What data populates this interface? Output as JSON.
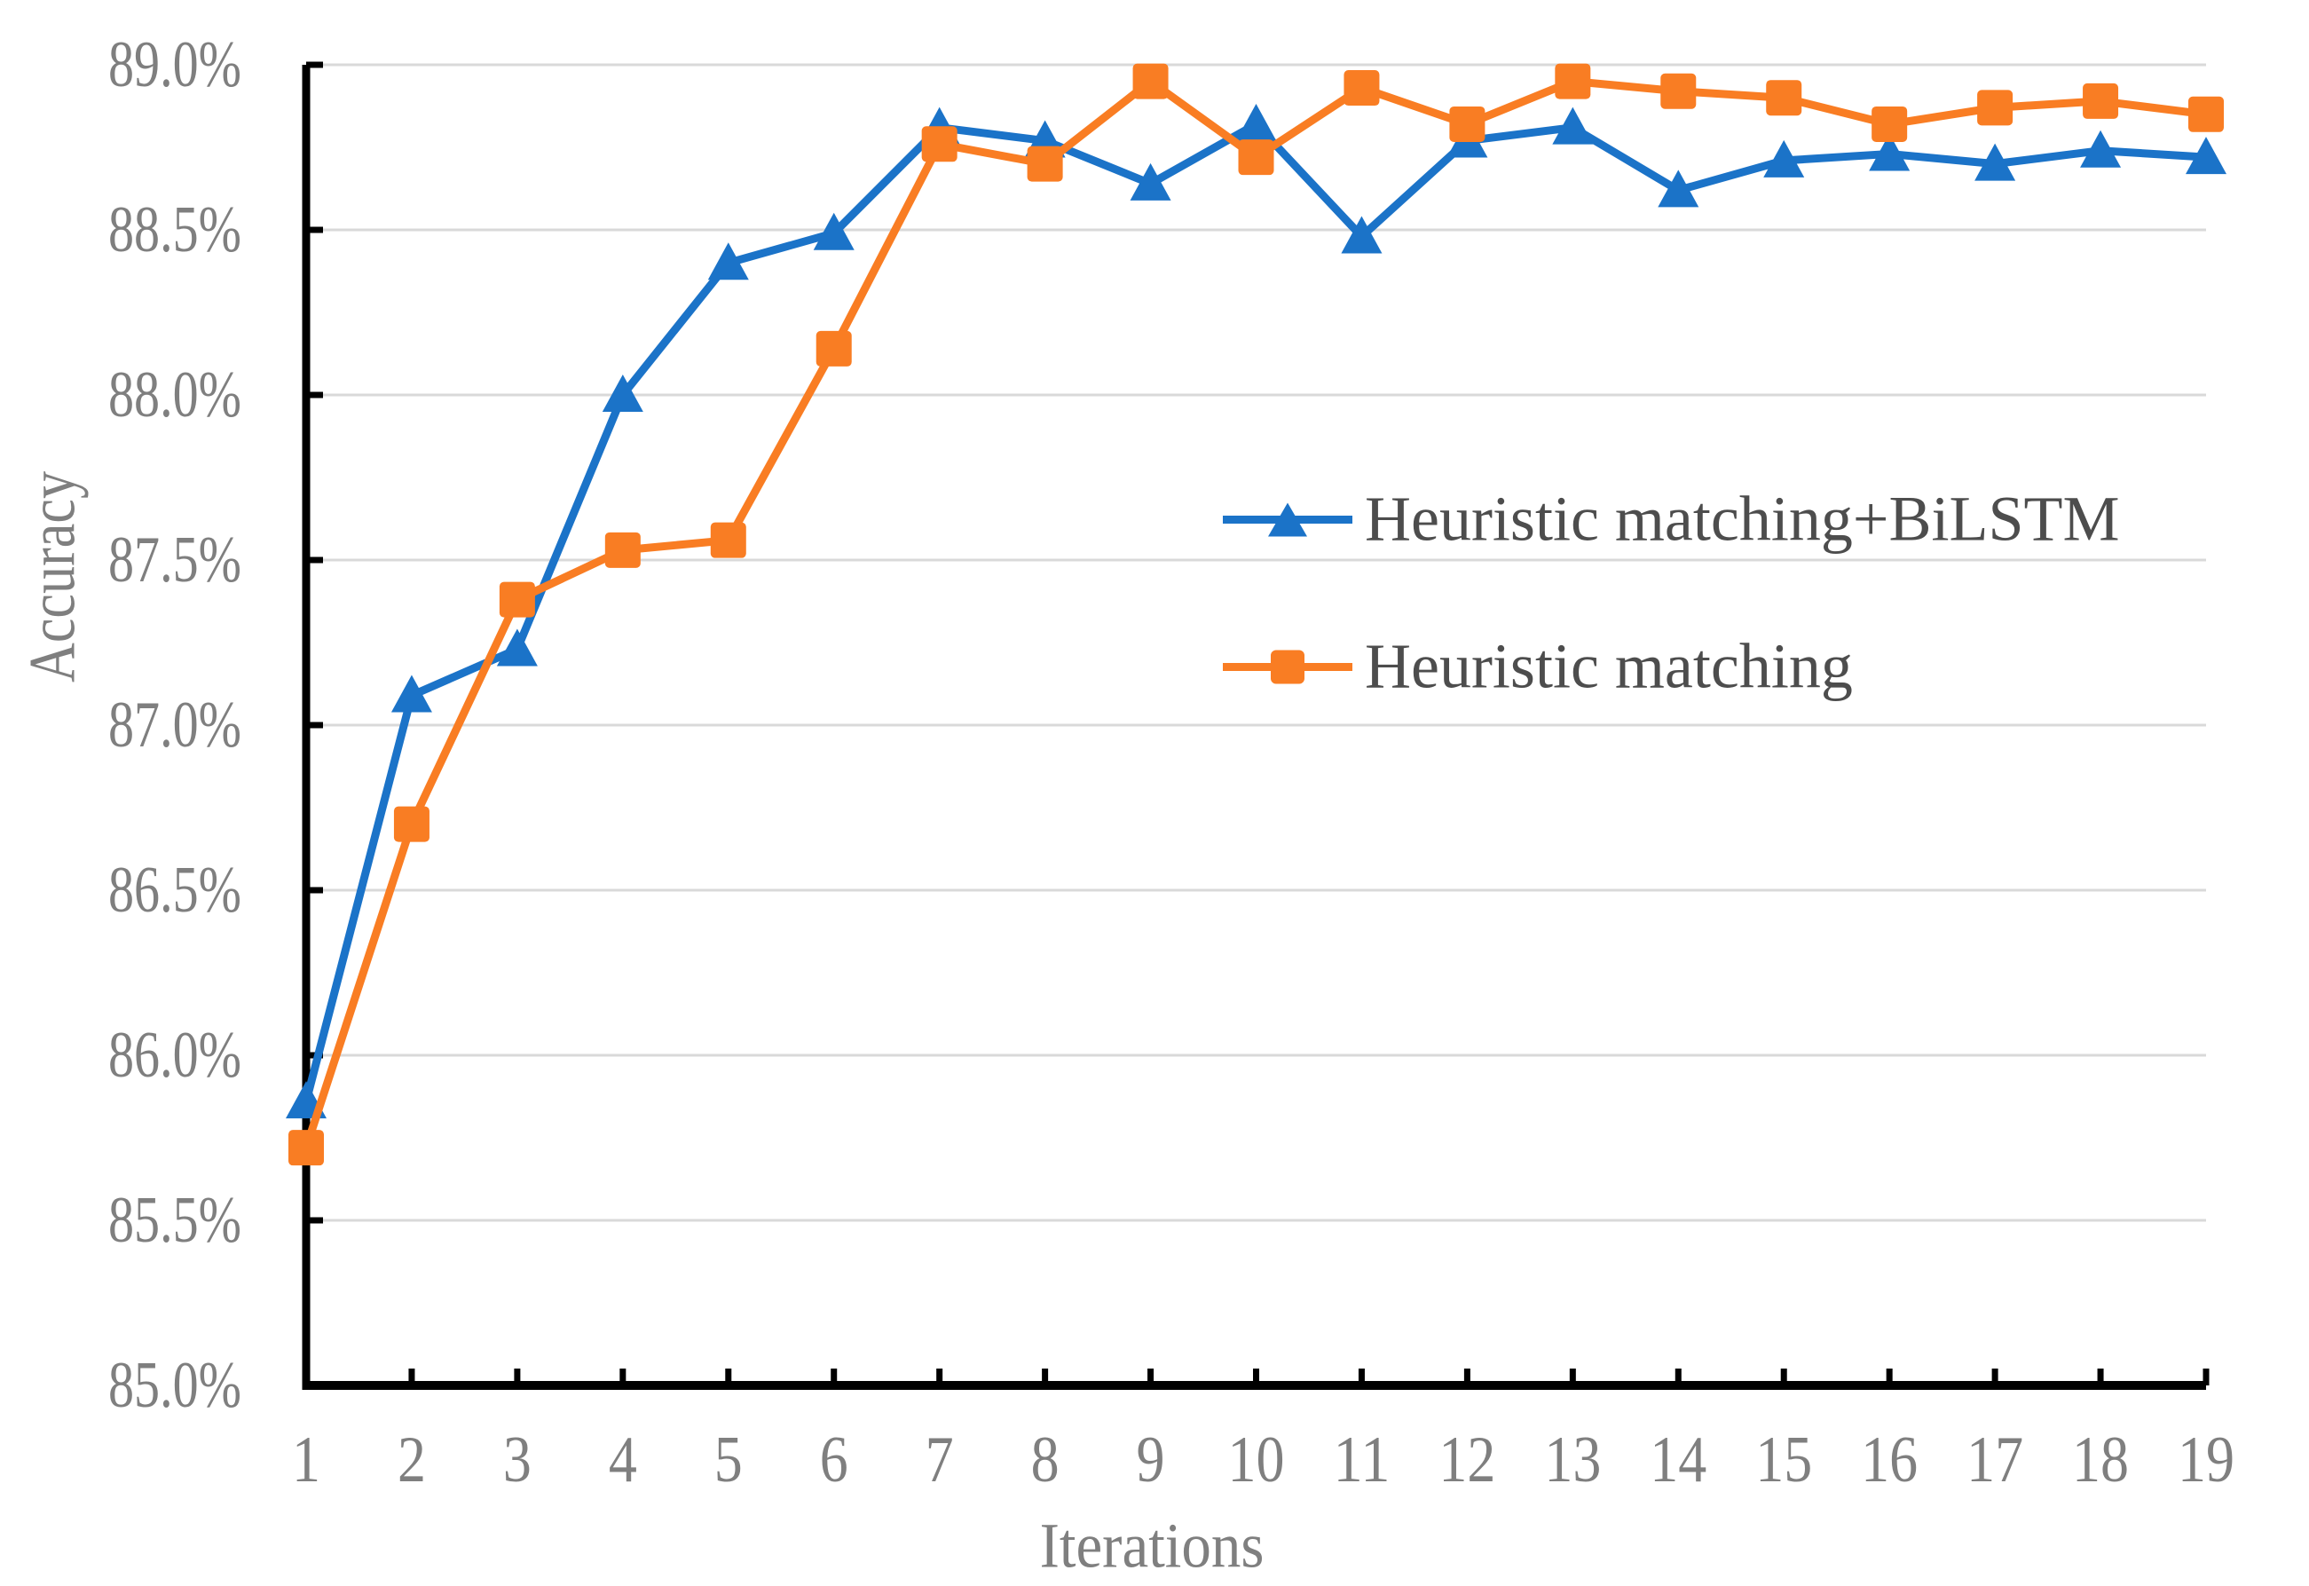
{
  "chart_data": {
    "type": "line",
    "title": "",
    "xlabel": "Iterations",
    "ylabel": "Accuracy",
    "x": [
      1,
      2,
      3,
      4,
      5,
      6,
      7,
      8,
      9,
      10,
      11,
      12,
      13,
      14,
      15,
      16,
      17,
      18,
      19
    ],
    "ylim": [
      85.0,
      89.0
    ],
    "grid": "horizontal-only",
    "yticks": [
      {
        "value": 85.0,
        "label": "85.0%"
      },
      {
        "value": 85.5,
        "label": "85.5%"
      },
      {
        "value": 86.0,
        "label": "86.0%"
      },
      {
        "value": 86.5,
        "label": "86.5%"
      },
      {
        "value": 87.0,
        "label": "87.0%"
      },
      {
        "value": 87.5,
        "label": "87.5%"
      },
      {
        "value": 88.0,
        "label": "88.0%"
      },
      {
        "value": 88.5,
        "label": "88.5%"
      },
      {
        "value": 89.0,
        "label": "89.0%"
      }
    ],
    "legend": {
      "position": "center-right"
    },
    "series": [
      {
        "name": "Heuristic matching+BiLSTM",
        "color": "#1B73C8",
        "marker": "triangle",
        "values": [
          85.86,
          87.09,
          87.23,
          88.0,
          88.4,
          88.49,
          88.81,
          88.77,
          88.64,
          88.82,
          88.48,
          88.77,
          88.81,
          88.62,
          88.71,
          88.73,
          88.7,
          88.74,
          88.72
        ]
      },
      {
        "name": "Heuristic matching",
        "color": "#F97D23",
        "marker": "square",
        "values": [
          85.72,
          86.7,
          87.38,
          87.53,
          87.56,
          88.14,
          88.76,
          88.7,
          88.95,
          88.72,
          88.93,
          88.82,
          88.95,
          88.92,
          88.9,
          88.82,
          88.87,
          88.89,
          88.85
        ]
      }
    ],
    "colors": {
      "gridline": "#D9D9D9",
      "axis": "#000000",
      "tick_text": "#7F7F7F",
      "legend_text": "#4D4D4D",
      "background": "#FFFFFF"
    }
  }
}
